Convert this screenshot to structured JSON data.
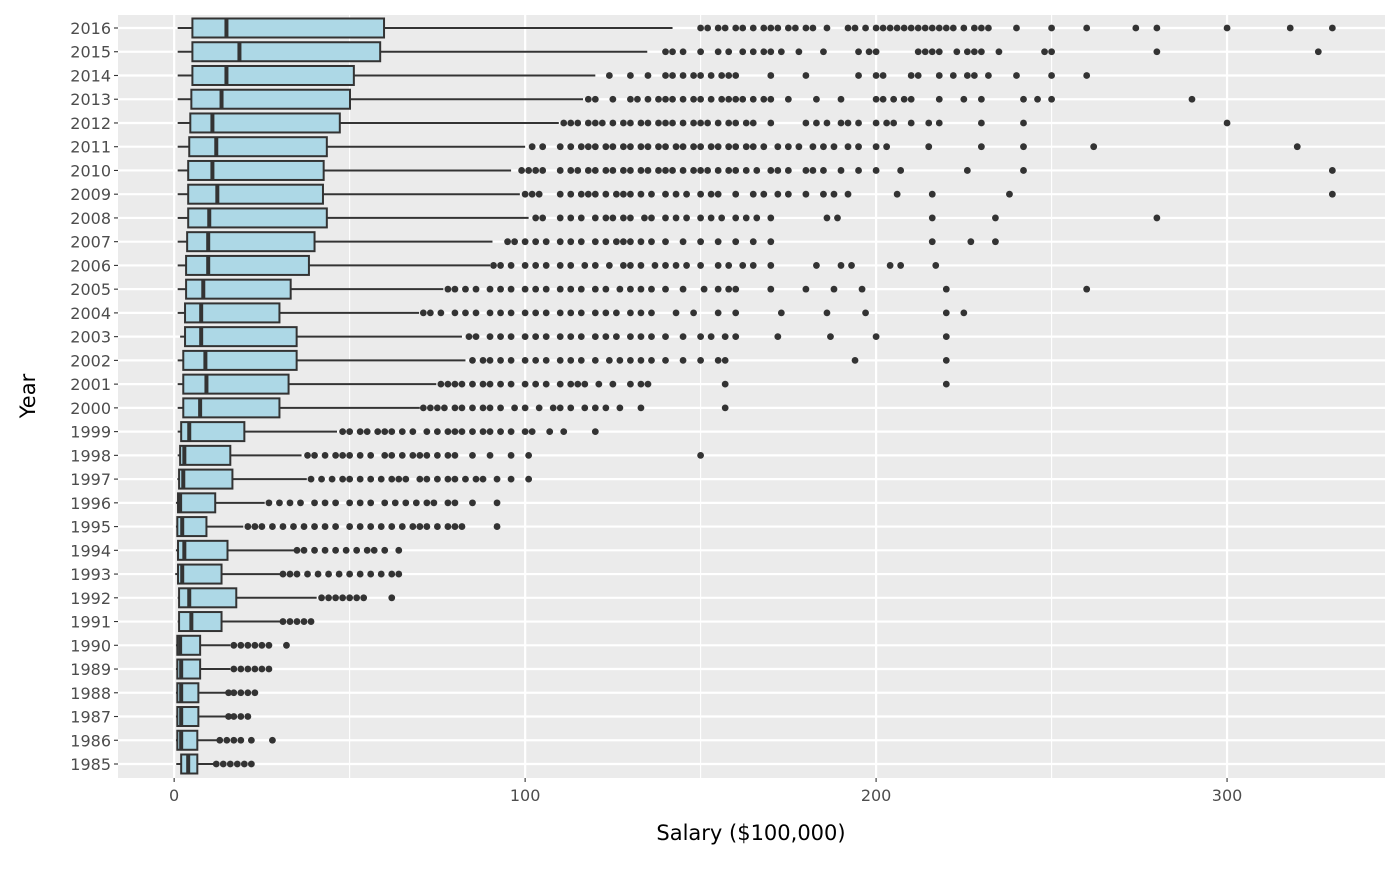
{
  "chart_data": {
    "type": "boxplot",
    "orientation": "horizontal",
    "title": "",
    "xlabel": "Salary ($100,000)",
    "ylabel": "Year",
    "xlim": [
      -16,
      345
    ],
    "xticks": [
      0,
      100,
      200,
      300
    ],
    "grid": true,
    "colors": {
      "panel": "#ebebeb",
      "grid": "#ffffff",
      "box_fill": "#add8e6",
      "box_stroke": "#333333",
      "outlier": "#333333",
      "tick_text": "#4d4d4d"
    },
    "series": [
      {
        "year": "2016",
        "lo": 1,
        "q1": 5.2,
        "median": 14.9,
        "q3": 59.8,
        "hi": 142,
        "outliers": [
          150,
          152,
          155,
          157,
          160,
          162,
          165,
          168,
          170,
          172,
          175,
          177,
          180,
          182,
          186,
          192,
          194,
          197,
          200,
          202,
          204,
          206,
          208,
          210,
          212,
          214,
          216,
          218,
          220,
          222,
          225,
          228,
          230,
          232,
          240,
          250,
          260,
          274,
          280,
          300,
          318,
          330
        ]
      },
      {
        "year": "2015",
        "lo": 1,
        "q1": 5.2,
        "median": 18.6,
        "q3": 58.7,
        "hi": 134.8,
        "outliers": [
          140,
          142,
          145,
          150,
          155,
          158,
          162,
          165,
          168,
          170,
          173,
          178,
          185,
          195,
          198,
          200,
          212,
          214,
          216,
          218,
          223,
          226,
          228,
          230,
          235,
          248,
          250,
          280,
          326
        ]
      },
      {
        "year": "2014",
        "lo": 1,
        "q1": 5.2,
        "median": 14.9,
        "q3": 51.2,
        "hi": 120,
        "outliers": [
          124,
          130,
          135,
          140,
          142,
          145,
          148,
          150,
          153,
          156,
          158,
          160,
          170,
          180,
          195,
          200,
          202,
          210,
          212,
          218,
          222,
          226,
          228,
          232,
          240,
          250,
          260
        ]
      },
      {
        "year": "2013",
        "lo": 1,
        "q1": 4.9,
        "median": 13.5,
        "q3": 50.1,
        "hi": 116.5,
        "outliers": [
          118,
          120,
          125,
          130,
          132,
          135,
          138,
          140,
          142,
          145,
          148,
          150,
          153,
          156,
          158,
          160,
          162,
          165,
          168,
          170,
          175,
          183,
          190,
          200,
          202,
          205,
          208,
          210,
          218,
          225,
          230,
          242,
          246,
          250,
          290
        ]
      },
      {
        "year": "2012",
        "lo": 1,
        "q1": 4.6,
        "median": 10.9,
        "q3": 47.2,
        "hi": 109.6,
        "outliers": [
          111,
          113,
          115,
          118,
          120,
          122,
          125,
          128,
          130,
          133,
          135,
          138,
          140,
          142,
          145,
          148,
          150,
          152,
          155,
          158,
          160,
          163,
          165,
          170,
          180,
          183,
          186,
          190,
          192,
          195,
          200,
          203,
          205,
          210,
          215,
          218,
          230,
          242,
          300
        ]
      },
      {
        "year": "2011",
        "lo": 1,
        "q1": 4.3,
        "median": 12,
        "q3": 43.5,
        "hi": 100,
        "outliers": [
          102,
          105,
          110,
          113,
          116,
          118,
          120,
          123,
          125,
          128,
          130,
          133,
          135,
          138,
          140,
          143,
          145,
          148,
          150,
          153,
          155,
          158,
          160,
          163,
          165,
          168,
          172,
          175,
          178,
          182,
          185,
          188,
          192,
          195,
          200,
          203,
          215,
          230,
          242,
          262,
          320
        ]
      },
      {
        "year": "2010",
        "lo": 1,
        "q1": 4.0,
        "median": 10.9,
        "q3": 42.6,
        "hi": 96,
        "outliers": [
          99,
          101,
          103,
          105,
          110,
          113,
          115,
          118,
          120,
          123,
          125,
          128,
          130,
          133,
          135,
          138,
          140,
          142,
          145,
          148,
          150,
          152,
          155,
          158,
          160,
          163,
          166,
          170,
          172,
          175,
          180,
          182,
          185,
          190,
          195,
          200,
          207,
          226,
          242,
          330
        ]
      },
      {
        "year": "2009",
        "lo": 1,
        "q1": 4.0,
        "median": 12.3,
        "q3": 42.4,
        "hi": 98.5,
        "outliers": [
          100,
          102,
          104,
          110,
          113,
          116,
          118,
          120,
          123,
          126,
          128,
          130,
          133,
          136,
          140,
          143,
          146,
          150,
          153,
          155,
          160,
          165,
          168,
          172,
          175,
          180,
          185,
          188,
          192,
          206,
          216,
          238,
          330
        ]
      },
      {
        "year": "2008",
        "lo": 1,
        "q1": 4.0,
        "median": 10,
        "q3": 43.5,
        "hi": 101,
        "outliers": [
          103,
          105,
          110,
          113,
          116,
          120,
          123,
          125,
          128,
          130,
          134,
          136,
          140,
          143,
          146,
          150,
          153,
          156,
          160,
          163,
          166,
          170,
          186,
          189,
          216,
          234,
          280
        ]
      },
      {
        "year": "2007",
        "lo": 1,
        "q1": 3.7,
        "median": 9.7,
        "q3": 40,
        "hi": 90.7,
        "outliers": [
          95,
          97,
          100,
          103,
          106,
          110,
          113,
          116,
          120,
          123,
          126,
          128,
          130,
          133,
          136,
          140,
          145,
          150,
          155,
          160,
          165,
          170,
          216,
          227,
          234
        ]
      },
      {
        "year": "2006",
        "lo": 1,
        "q1": 3.4,
        "median": 9.7,
        "q3": 38.4,
        "hi": 90,
        "outliers": [
          91,
          93,
          96,
          100,
          103,
          106,
          110,
          113,
          117,
          120,
          124,
          128,
          130,
          133,
          137,
          140,
          143,
          146,
          150,
          155,
          158,
          162,
          165,
          170,
          183,
          190,
          193,
          204,
          207,
          217
        ]
      },
      {
        "year": "2005",
        "lo": 1,
        "q1": 3.4,
        "median": 8.3,
        "q3": 33.2,
        "hi": 76.7,
        "outliers": [
          78,
          80,
          83,
          86,
          90,
          93,
          96,
          100,
          103,
          106,
          110,
          113,
          116,
          120,
          123,
          127,
          130,
          133,
          136,
          140,
          145,
          151,
          155,
          158,
          160,
          170,
          180,
          188,
          196,
          220,
          260
        ]
      },
      {
        "year": "2004",
        "lo": 1,
        "q1": 3.1,
        "median": 7.7,
        "q3": 30,
        "hi": 69.8,
        "outliers": [
          71,
          73,
          76,
          80,
          83,
          86,
          90,
          93,
          96,
          100,
          103,
          106,
          110,
          113,
          116,
          120,
          123,
          126,
          130,
          133,
          136,
          143,
          148,
          155,
          160,
          173,
          186,
          197,
          220,
          225
        ]
      },
      {
        "year": "2003",
        "lo": 1.7,
        "q1": 3.1,
        "median": 7.7,
        "q3": 34.9,
        "hi": 82,
        "outliers": [
          84,
          86,
          90,
          93,
          96,
          100,
          103,
          106,
          110,
          113,
          116,
          120,
          123,
          126,
          130,
          133,
          136,
          140,
          145,
          150,
          153,
          157,
          160,
          172,
          187,
          200,
          220
        ]
      },
      {
        "year": "2002",
        "lo": 1,
        "q1": 2.6,
        "median": 8.9,
        "q3": 34.9,
        "hi": 83,
        "outliers": [
          85,
          88,
          90,
          93,
          96,
          100,
          103,
          106,
          110,
          113,
          116,
          120,
          124,
          127,
          130,
          133,
          136,
          140,
          145,
          150,
          155,
          157,
          194,
          220
        ]
      },
      {
        "year": "2001",
        "lo": 1,
        "q1": 2.6,
        "median": 9.2,
        "q3": 32.6,
        "hi": 74.7,
        "outliers": [
          76,
          78,
          80,
          82,
          85,
          88,
          90,
          93,
          96,
          100,
          103,
          106,
          110,
          113,
          115,
          117,
          121,
          125,
          130,
          133,
          135,
          157,
          220
        ]
      },
      {
        "year": "2000",
        "lo": 1,
        "q1": 2.6,
        "median": 7.4,
        "q3": 30,
        "hi": 70,
        "outliers": [
          71,
          73,
          75,
          77,
          80,
          82,
          85,
          88,
          90,
          93,
          97,
          100,
          104,
          108,
          110,
          113,
          117,
          120,
          123,
          127,
          133,
          157
        ]
      },
      {
        "year": "1999",
        "lo": 1,
        "q1": 2.0,
        "median": 4.3,
        "q3": 20,
        "hi": 46.4,
        "outliers": [
          48,
          50,
          53,
          55,
          58,
          60,
          62,
          65,
          68,
          72,
          75,
          78,
          80,
          82,
          85,
          88,
          90,
          93,
          96,
          100,
          102,
          107,
          111,
          120
        ]
      },
      {
        "year": "1998",
        "lo": 1,
        "q1": 1.7,
        "median": 2.9,
        "q3": 16,
        "hi": 36.3,
        "outliers": [
          38,
          40,
          43,
          46,
          48,
          50,
          53,
          56,
          60,
          62,
          65,
          68,
          70,
          72,
          75,
          78,
          80,
          85,
          90,
          96,
          101,
          150
        ]
      },
      {
        "year": "1997",
        "lo": 0.9,
        "q1": 1.4,
        "median": 2.6,
        "q3": 16.6,
        "hi": 37.8,
        "outliers": [
          39,
          42,
          45,
          48,
          50,
          53,
          56,
          59,
          62,
          64,
          66,
          70,
          72,
          75,
          78,
          80,
          83,
          86,
          88,
          92,
          96,
          101
        ]
      },
      {
        "year": "1996",
        "lo": 0.5,
        "q1": 1.1,
        "median": 1.7,
        "q3": 11.7,
        "hi": 25.8,
        "outliers": [
          27,
          30,
          33,
          36,
          40,
          43,
          46,
          50,
          53,
          56,
          60,
          63,
          66,
          69,
          72,
          74,
          78,
          80,
          85,
          92
        ]
      },
      {
        "year": "1995",
        "lo": 0.5,
        "q1": 0.9,
        "median": 2.3,
        "q3": 9.2,
        "hi": 19.7,
        "outliers": [
          21,
          23,
          25,
          28,
          31,
          34,
          37,
          40,
          43,
          46,
          50,
          53,
          56,
          59,
          62,
          65,
          68,
          70,
          72,
          75,
          78,
          80,
          82,
          92
        ]
      },
      {
        "year": "1994",
        "lo": 0.5,
        "q1": 1.1,
        "median": 2.9,
        "q3": 15.2,
        "hi": 34.3,
        "outliers": [
          35,
          37,
          40,
          43,
          46,
          49,
          52,
          55,
          57,
          60,
          64
        ]
      },
      {
        "year": "1993",
        "lo": 0.3,
        "q1": 1.1,
        "median": 2.3,
        "q3": 13.5,
        "hi": 30.3,
        "outliers": [
          31,
          33,
          35,
          38,
          41,
          44,
          47,
          50,
          53,
          56,
          59,
          62,
          64
        ]
      },
      {
        "year": "1992",
        "lo": 1,
        "q1": 1.4,
        "median": 4.3,
        "q3": 17.7,
        "hi": 40.6,
        "outliers": [
          42,
          44,
          46,
          48,
          50,
          52,
          54,
          62
        ]
      },
      {
        "year": "1991",
        "lo": 1,
        "q1": 1.4,
        "median": 4.9,
        "q3": 13.5,
        "hi": 30.6,
        "outliers": [
          31,
          33,
          35,
          37,
          39
        ]
      },
      {
        "year": "1990",
        "lo": 0.5,
        "q1": 0.9,
        "median": 1.7,
        "q3": 7.4,
        "hi": 16,
        "outliers": [
          17,
          19,
          21,
          23,
          25,
          27,
          32
        ]
      },
      {
        "year": "1989",
        "lo": 0.5,
        "q1": 0.9,
        "median": 2.0,
        "q3": 7.4,
        "hi": 16,
        "outliers": [
          17,
          19,
          21,
          23,
          25,
          27
        ]
      },
      {
        "year": "1988",
        "lo": 0.5,
        "q1": 0.9,
        "median": 2.0,
        "q3": 6.9,
        "hi": 14.9,
        "outliers": [
          15.5,
          17,
          19,
          21,
          23
        ]
      },
      {
        "year": "1987",
        "lo": 0.5,
        "q1": 0.9,
        "median": 2.0,
        "q3": 6.9,
        "hi": 15,
        "outliers": [
          15.5,
          17,
          19,
          21
        ]
      },
      {
        "year": "1986",
        "lo": 0.5,
        "q1": 0.9,
        "median": 2.0,
        "q3": 6.6,
        "hi": 12.5,
        "outliers": [
          13,
          15,
          17,
          19,
          22,
          28
        ]
      },
      {
        "year": "1985",
        "lo": 0.6,
        "q1": 2.0,
        "median": 4.0,
        "q3": 6.6,
        "hi": 11.5,
        "outliers": [
          12,
          14,
          16,
          18,
          20,
          22
        ]
      }
    ]
  }
}
